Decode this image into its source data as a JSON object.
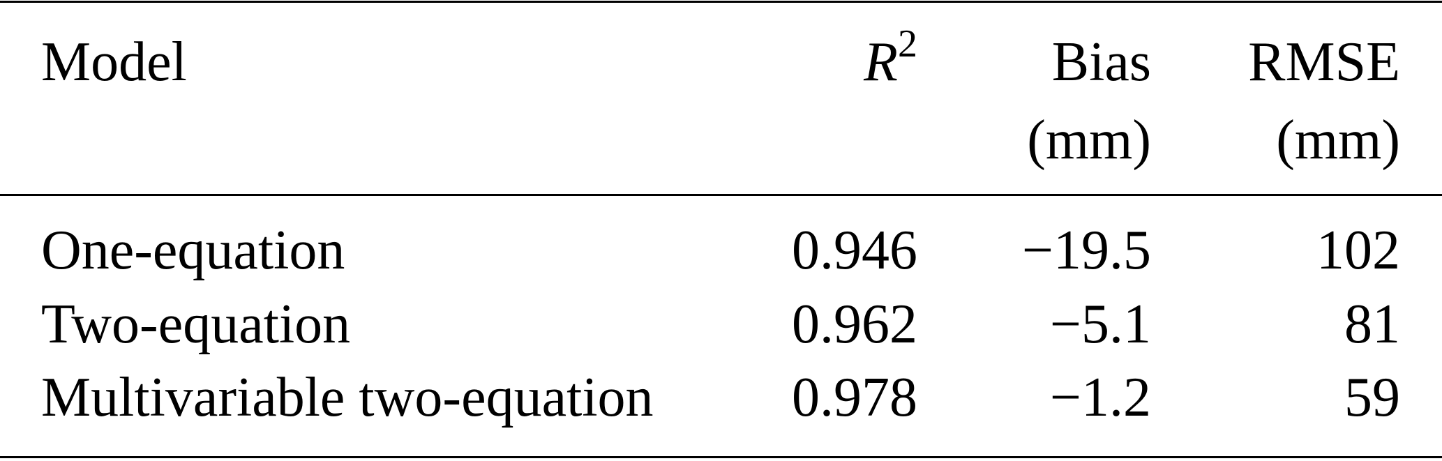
{
  "table": {
    "headers": [
      {
        "line1": "Model",
        "line2": ""
      },
      {
        "base": "R",
        "sup": "2",
        "line2": ""
      },
      {
        "line1": "Bias",
        "line2": "(mm)"
      },
      {
        "line1": "RMSE",
        "line2": "(mm)"
      }
    ],
    "rows": [
      {
        "model": "One-equation",
        "r2": "0.946",
        "bias": "−19.5",
        "rmse": "102"
      },
      {
        "model": "Two-equation",
        "r2": "0.962",
        "bias": "−5.1",
        "rmse": "81"
      },
      {
        "model": "Multivariable two-equation",
        "r2": "0.978",
        "bias": "−1.2",
        "rmse": "59"
      }
    ]
  }
}
